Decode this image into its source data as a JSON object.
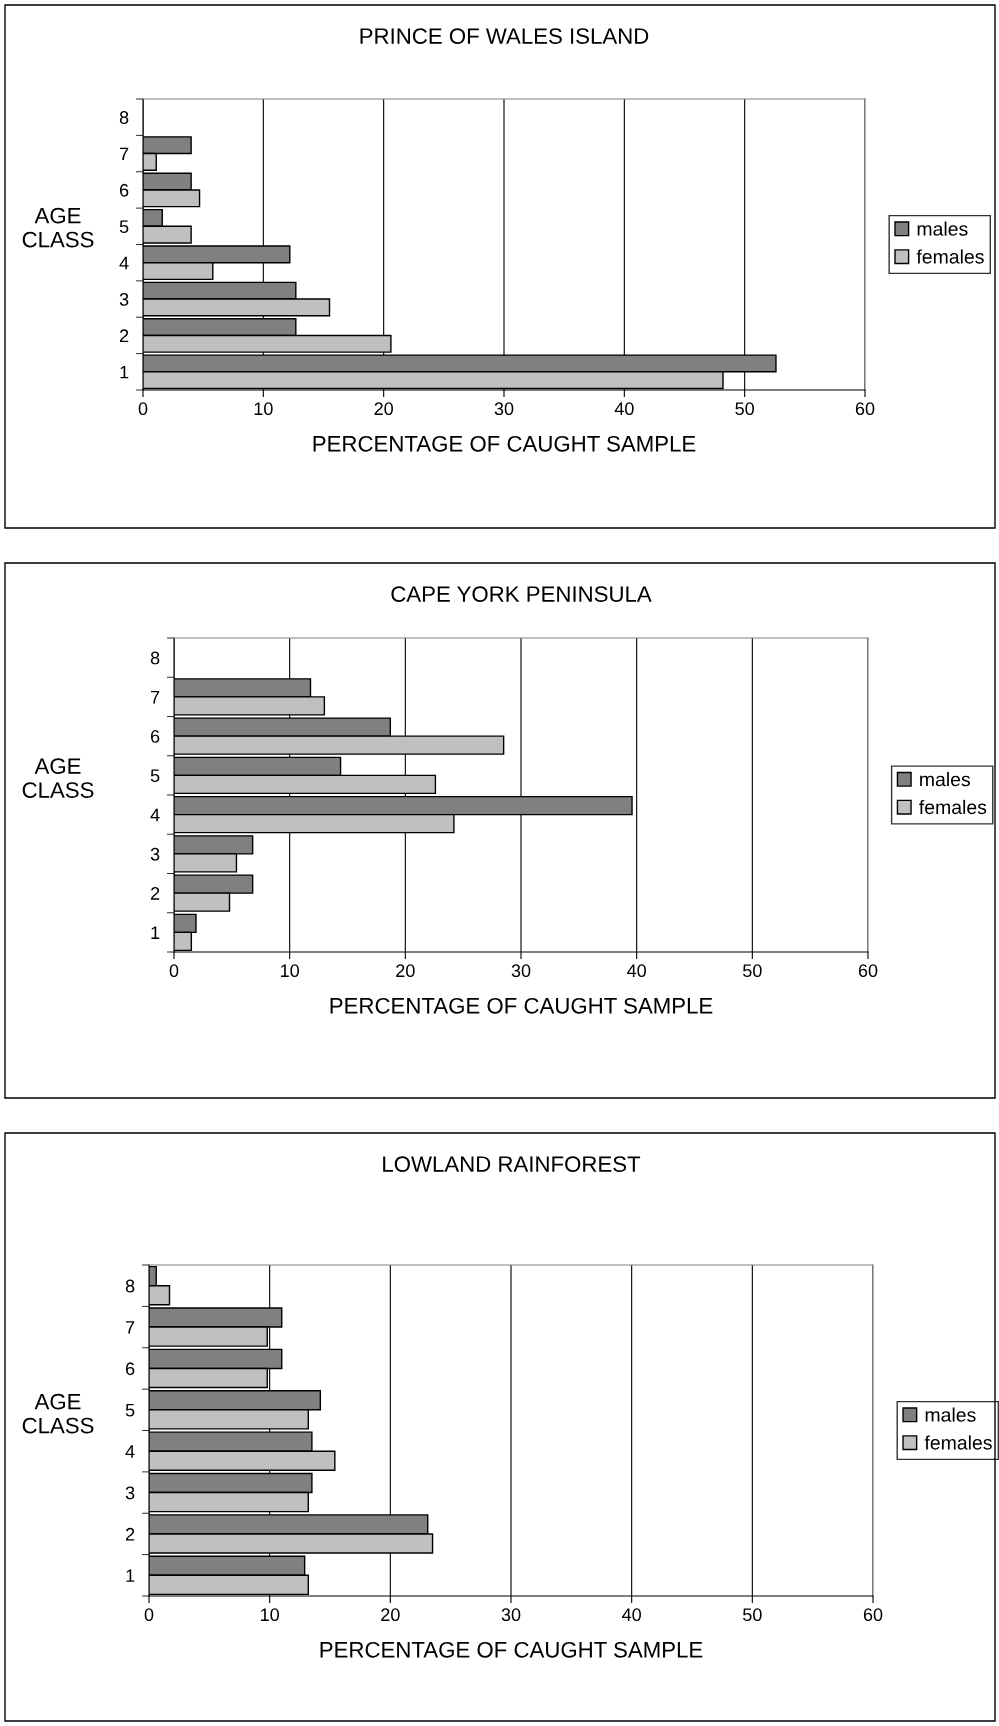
{
  "chart_data": [
    {
      "type": "bar",
      "orientation": "horizontal",
      "title": "PRINCE OF WALES ISLAND",
      "xlabel": "PERCENTAGE OF CAUGHT SAMPLE",
      "ylabel": "AGE\nCLASS",
      "categories": [
        "8",
        "7",
        "6",
        "5",
        "4",
        "3",
        "2",
        "1"
      ],
      "series": [
        {
          "name": "males",
          "color": "#808080",
          "values": [
            null,
            4.0,
            4.0,
            1.6,
            12.2,
            12.7,
            12.7,
            52.6
          ]
        },
        {
          "name": "females",
          "color": "#c0c0c0",
          "values": [
            null,
            1.1,
            4.7,
            4.0,
            5.8,
            15.5,
            20.6,
            48.2
          ]
        }
      ],
      "xlim": [
        0,
        60
      ],
      "xticks": [
        0,
        10,
        20,
        30,
        40,
        50,
        60
      ],
      "grid": "x",
      "legend": "right"
    },
    {
      "type": "bar",
      "orientation": "horizontal",
      "title": "CAPE YORK PENINSULA",
      "xlabel": "PERCENTAGE OF CAUGHT SAMPLE",
      "ylabel": "AGE\nCLASS",
      "categories": [
        "8",
        "7",
        "6",
        "5",
        "4",
        "3",
        "2",
        "1"
      ],
      "series": [
        {
          "name": "males",
          "color": "#808080",
          "values": [
            null,
            11.8,
            18.7,
            14.4,
            39.6,
            6.8,
            6.8,
            1.9
          ]
        },
        {
          "name": "females",
          "color": "#c0c0c0",
          "values": [
            null,
            13.0,
            28.5,
            22.6,
            24.2,
            5.4,
            4.8,
            1.5
          ]
        }
      ],
      "xlim": [
        0,
        60
      ],
      "xticks": [
        0,
        10,
        20,
        30,
        40,
        50,
        60
      ],
      "grid": "x",
      "legend": "right"
    },
    {
      "type": "bar",
      "orientation": "horizontal",
      "title": "LOWLAND RAINFOREST",
      "xlabel": "PERCENTAGE OF CAUGHT SAMPLE",
      "ylabel": "AGE\nCLASS",
      "categories": [
        "8",
        "7",
        "6",
        "5",
        "4",
        "3",
        "2",
        "1"
      ],
      "series": [
        {
          "name": "males",
          "color": "#808080",
          "values": [
            0.6,
            11.0,
            11.0,
            14.2,
            13.5,
            13.5,
            23.1,
            12.9
          ]
        },
        {
          "name": "females",
          "color": "#c0c0c0",
          "values": [
            1.7,
            9.8,
            9.8,
            13.2,
            15.4,
            13.2,
            23.5,
            13.2
          ]
        }
      ],
      "xlim": [
        0,
        60
      ],
      "xticks": [
        0,
        10,
        20,
        30,
        40,
        50,
        60
      ],
      "grid": "x",
      "legend": "right"
    }
  ]
}
